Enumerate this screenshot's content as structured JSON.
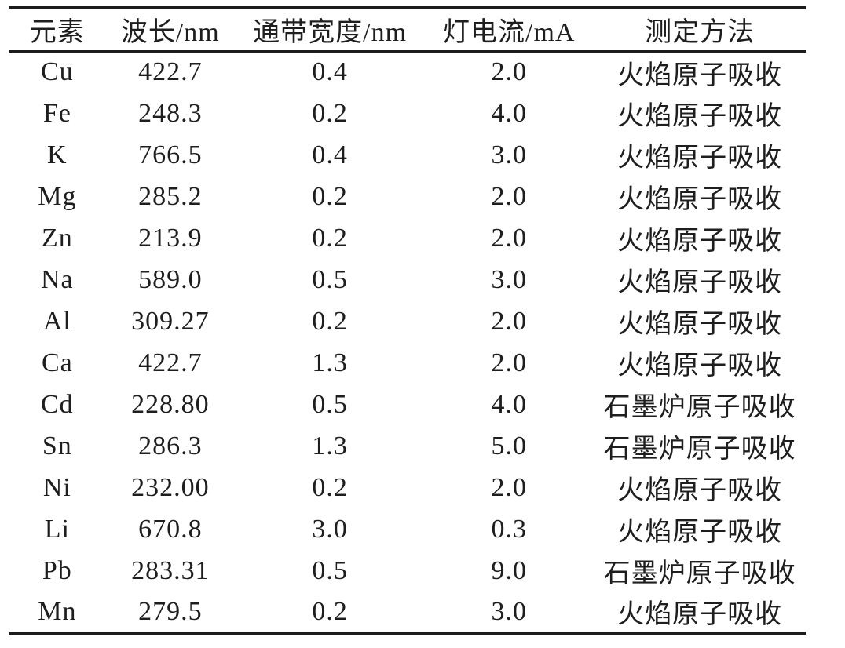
{
  "page": {
    "background_color": "#ffffff",
    "text_color": "#1e1e1e",
    "rule_color": "#1c1c1c",
    "table_style": "three-line-table"
  },
  "table": {
    "headers": [
      "元素",
      "波长/nm",
      "通带宽度/nm",
      "灯电流/mA",
      "测定方法"
    ],
    "column_keys": [
      "element",
      "wavelength-nm",
      "bandpass-nm",
      "lamp-current-ma",
      "method"
    ],
    "rows": [
      [
        "Cu",
        "422.7",
        "0.4",
        "2.0",
        "火焰原子吸收"
      ],
      [
        "Fe",
        "248.3",
        "0.2",
        "4.0",
        "火焰原子吸收"
      ],
      [
        "K",
        "766.5",
        "0.4",
        "3.0",
        "火焰原子吸收"
      ],
      [
        "Mg",
        "285.2",
        "0.2",
        "2.0",
        "火焰原子吸收"
      ],
      [
        "Zn",
        "213.9",
        "0.2",
        "2.0",
        "火焰原子吸收"
      ],
      [
        "Na",
        "589.0",
        "0.5",
        "3.0",
        "火焰原子吸收"
      ],
      [
        "Al",
        "309.27",
        "0.2",
        "2.0",
        "火焰原子吸收"
      ],
      [
        "Ca",
        "422.7",
        "1.3",
        "2.0",
        "火焰原子吸收"
      ],
      [
        "Cd",
        "228.80",
        "0.5",
        "4.0",
        "石墨炉原子吸收"
      ],
      [
        "Sn",
        "286.3",
        "1.3",
        "5.0",
        "石墨炉原子吸收"
      ],
      [
        "Ni",
        "232.00",
        "0.2",
        "2.0",
        "火焰原子吸收"
      ],
      [
        "Li",
        "670.8",
        "3.0",
        "0.3",
        "火焰原子吸收"
      ],
      [
        "Pb",
        "283.31",
        "0.5",
        "9.0",
        "石墨炉原子吸收"
      ],
      [
        "Mn",
        "279.5",
        "0.2",
        "3.0",
        "火焰原子吸收"
      ]
    ]
  }
}
